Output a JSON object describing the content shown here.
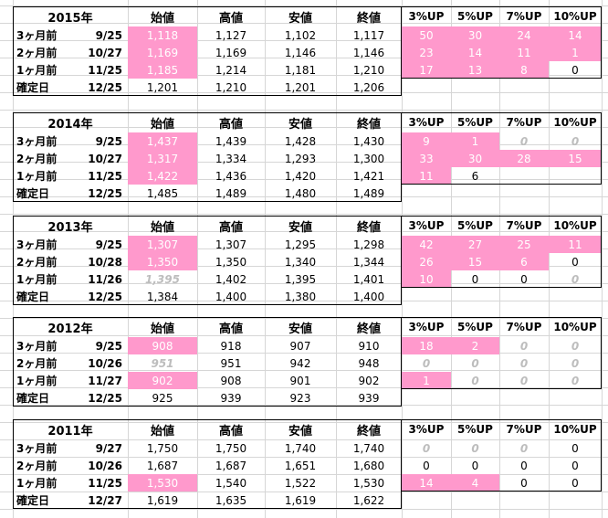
{
  "columns": {
    "prices": [
      "始値",
      "高値",
      "安値",
      "終値"
    ],
    "ups": [
      "3%UP",
      "5%UP",
      "7%UP",
      "10%UP"
    ]
  },
  "colors": {
    "highlight": "#ff99cc",
    "faded": "#bdbdbd",
    "grid": "#d6d6d6"
  },
  "blocks": [
    {
      "year": "2015年",
      "rows": [
        {
          "label": "3ヶ月前",
          "date": "9/25",
          "prices": [
            "1,118",
            "1,127",
            "1,102",
            "1,117"
          ],
          "ups": [
            "50",
            "30",
            "24",
            "14"
          ]
        },
        {
          "label": "2ヶ月前",
          "date": "10/27",
          "prices": [
            "1,169",
            "1,169",
            "1,146",
            "1,146"
          ],
          "ups": [
            "23",
            "14",
            "11",
            "1"
          ]
        },
        {
          "label": "1ヶ月前",
          "date": "11/25",
          "prices": [
            "1,185",
            "1,214",
            "1,181",
            "1,210"
          ],
          "ups": [
            "17",
            "13",
            "8",
            "0"
          ]
        },
        {
          "label": "確定日",
          "date": "12/25",
          "prices": [
            "1,201",
            "1,210",
            "1,201",
            "1,206"
          ],
          "ups": [
            "",
            "",
            "",
            ""
          ]
        }
      ]
    },
    {
      "year": "2014年",
      "rows": [
        {
          "label": "3ヶ月前",
          "date": "9/25",
          "prices": [
            "1,437",
            "1,439",
            "1,428",
            "1,430"
          ],
          "ups": [
            "9",
            "1",
            "0",
            "0"
          ]
        },
        {
          "label": "2ヶ月前",
          "date": "10/27",
          "prices": [
            "1,317",
            "1,334",
            "1,293",
            "1,300"
          ],
          "ups": [
            "33",
            "30",
            "28",
            "15"
          ]
        },
        {
          "label": "1ヶ月前",
          "date": "11/25",
          "prices": [
            "1,422",
            "1,436",
            "1,420",
            "1,421"
          ],
          "ups": [
            "11",
            "6",
            "",
            ""
          ]
        },
        {
          "label": "確定日",
          "date": "12/25",
          "prices": [
            "1,485",
            "1,489",
            "1,480",
            "1,489"
          ],
          "ups": [
            "",
            "",
            "",
            ""
          ]
        }
      ]
    },
    {
      "year": "2013年",
      "rows": [
        {
          "label": "3ヶ月前",
          "date": "9/25",
          "prices": [
            "1,307",
            "1,307",
            "1,295",
            "1,298"
          ],
          "ups": [
            "42",
            "27",
            "25",
            "11"
          ]
        },
        {
          "label": "2ヶ月前",
          "date": "10/28",
          "prices": [
            "1,350",
            "1,350",
            "1,340",
            "1,344"
          ],
          "ups": [
            "26",
            "15",
            "6",
            "0"
          ]
        },
        {
          "label": "1ヶ月前",
          "date": "11/26",
          "prices": [
            "1,395",
            "1,402",
            "1,395",
            "1,401"
          ],
          "ups": [
            "10",
            "0",
            "0",
            "0"
          ]
        },
        {
          "label": "確定日",
          "date": "12/25",
          "prices": [
            "1,384",
            "1,400",
            "1,380",
            "1,400"
          ],
          "ups": [
            "",
            "",
            "",
            ""
          ]
        }
      ]
    },
    {
      "year": "2012年",
      "rows": [
        {
          "label": "3ヶ月前",
          "date": "9/25",
          "prices": [
            "908",
            "918",
            "907",
            "910"
          ],
          "ups": [
            "18",
            "2",
            "0",
            "0"
          ]
        },
        {
          "label": "2ヶ月前",
          "date": "10/26",
          "prices": [
            "951",
            "951",
            "942",
            "948"
          ],
          "ups": [
            "0",
            "0",
            "0",
            "0"
          ]
        },
        {
          "label": "1ヶ月前",
          "date": "11/27",
          "prices": [
            "902",
            "908",
            "901",
            "902"
          ],
          "ups": [
            "1",
            "0",
            "0",
            "0"
          ]
        },
        {
          "label": "確定日",
          "date": "12/25",
          "prices": [
            "925",
            "939",
            "923",
            "939"
          ],
          "ups": [
            "",
            "",
            "",
            ""
          ]
        }
      ]
    },
    {
      "year": "2011年",
      "rows": [
        {
          "label": "3ヶ月前",
          "date": "9/27",
          "prices": [
            "1,750",
            "1,750",
            "1,740",
            "1,740"
          ],
          "ups": [
            "0",
            "0",
            "0",
            "0"
          ]
        },
        {
          "label": "2ヶ月前",
          "date": "10/26",
          "prices": [
            "1,687",
            "1,687",
            "1,651",
            "1,680"
          ],
          "ups": [
            "0",
            "0",
            "0",
            "0"
          ]
        },
        {
          "label": "1ヶ月前",
          "date": "11/25",
          "prices": [
            "1,530",
            "1,540",
            "1,522",
            "1,530"
          ],
          "ups": [
            "14",
            "4",
            "0",
            "0"
          ]
        },
        {
          "label": "確定日",
          "date": "12/27",
          "prices": [
            "1,619",
            "1,635",
            "1,619",
            "1,622"
          ],
          "ups": [
            "",
            "",
            "",
            ""
          ]
        }
      ]
    }
  ]
}
